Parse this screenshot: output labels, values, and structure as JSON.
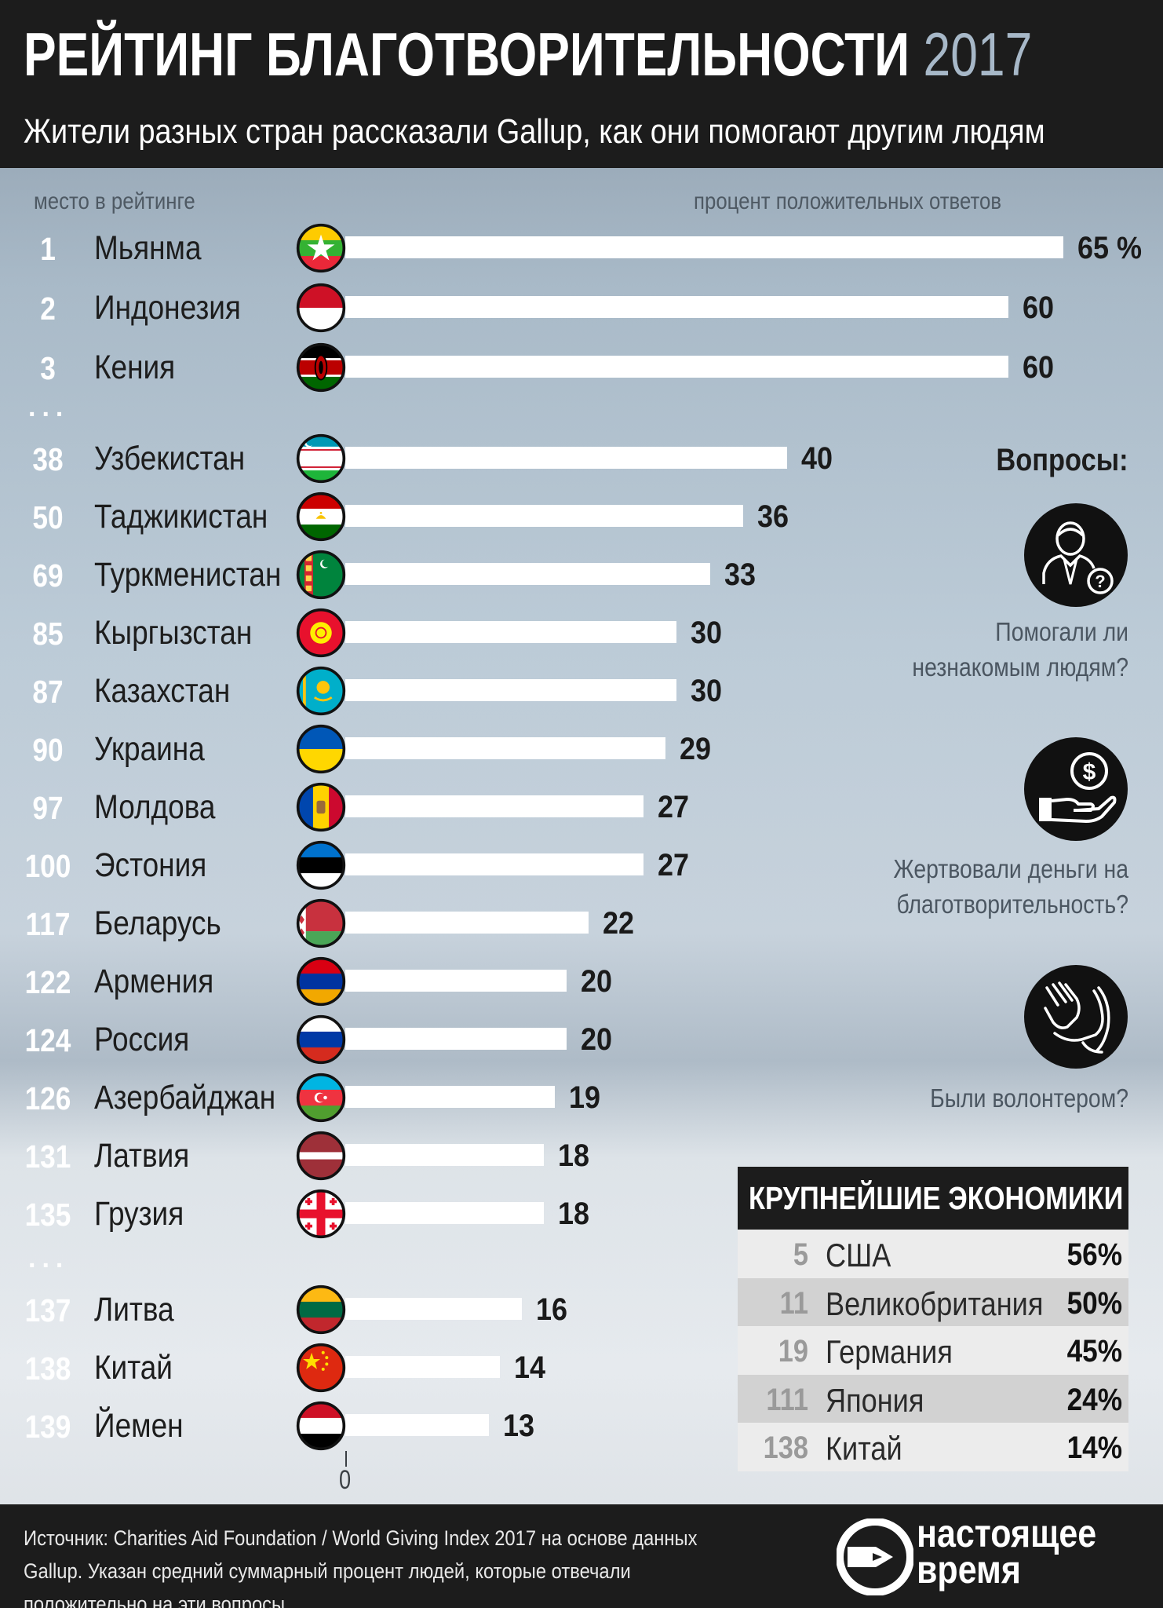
{
  "header": {
    "title": "РЕЙТИНГ БЛАГОТВОРИТЕЛЬНОСТИ",
    "title_year": "2017",
    "subtitle": "Жители разных стран рассказали Gallup, как они помогают другим людям"
  },
  "column_headers": {
    "rank": "место в рейтинге",
    "percent": "процент положительных ответов"
  },
  "ellipsis": "...",
  "chart_data": {
    "type": "bar",
    "orientation": "horizontal",
    "value_max": 65,
    "axis_zero_label": "0",
    "rows": [
      {
        "rank": "1",
        "country": "Мьянма",
        "value": 65,
        "label": "65 %",
        "flag": "myanmar"
      },
      {
        "rank": "2",
        "country": "Индонезия",
        "value": 60,
        "label": "60",
        "flag": "indonesia"
      },
      {
        "rank": "3",
        "country": "Кения",
        "value": 60,
        "label": "60",
        "flag": "kenya"
      },
      {
        "rank": "38",
        "country": "Узбекистан",
        "value": 40,
        "label": "40",
        "flag": "uzbekistan"
      },
      {
        "rank": "50",
        "country": "Таджикистан",
        "value": 36,
        "label": "36",
        "flag": "tajikistan"
      },
      {
        "rank": "69",
        "country": "Туркменистан",
        "value": 33,
        "label": "33",
        "flag": "turkmenistan"
      },
      {
        "rank": "85",
        "country": "Кыргызстан",
        "value": 30,
        "label": "30",
        "flag": "kyrgyzstan"
      },
      {
        "rank": "87",
        "country": "Казахстан",
        "value": 30,
        "label": "30",
        "flag": "kazakhstan"
      },
      {
        "rank": "90",
        "country": "Украина",
        "value": 29,
        "label": "29",
        "flag": "ukraine"
      },
      {
        "rank": "97",
        "country": "Молдова",
        "value": 27,
        "label": "27",
        "flag": "moldova"
      },
      {
        "rank": "100",
        "country": "Эстония",
        "value": 27,
        "label": "27",
        "flag": "estonia"
      },
      {
        "rank": "117",
        "country": "Беларусь",
        "value": 22,
        "label": "22",
        "flag": "belarus"
      },
      {
        "rank": "122",
        "country": "Армения",
        "value": 20,
        "label": "20",
        "flag": "armenia"
      },
      {
        "rank": "124",
        "country": "Россия",
        "value": 20,
        "label": "20",
        "flag": "russia"
      },
      {
        "rank": "126",
        "country": "Азербайджан",
        "value": 19,
        "label": "19",
        "flag": "azerbaijan"
      },
      {
        "rank": "131",
        "country": "Латвия",
        "value": 18,
        "label": "18",
        "flag": "latvia"
      },
      {
        "rank": "135",
        "country": "Грузия",
        "value": 18,
        "label": "18",
        "flag": "georgia"
      },
      {
        "rank": "137",
        "country": "Литва",
        "value": 16,
        "label": "16",
        "flag": "lithuania"
      },
      {
        "rank": "138",
        "country": "Китай",
        "value": 14,
        "label": "14",
        "flag": "china"
      },
      {
        "rank": "139",
        "country": "Йемен",
        "value": 13,
        "label": "13",
        "flag": "yemen"
      }
    ]
  },
  "questions": {
    "title": "Вопросы:",
    "items": [
      {
        "icon": "person-question-icon",
        "line1": "Помогали ли",
        "line2": "незнакомым людям?"
      },
      {
        "icon": "hand-coin-icon",
        "line1": "Жертвовали деньги на",
        "line2": "благотворительность?"
      },
      {
        "icon": "helping-hands-icon",
        "line1": "Были волонтером?",
        "line2": ""
      }
    ]
  },
  "economies": {
    "title": "КРУПНЕЙШИЕ ЭКОНОМИКИ",
    "rows": [
      {
        "rank": "5",
        "country": "США",
        "percent": "56%"
      },
      {
        "rank": "11",
        "country": "Великобритания",
        "percent": "50%"
      },
      {
        "rank": "19",
        "country": "Германия",
        "percent": "45%"
      },
      {
        "rank": "111",
        "country": "Япония",
        "percent": "24%"
      },
      {
        "rank": "138",
        "country": "Китай",
        "percent": "14%"
      }
    ]
  },
  "footer": {
    "source": "Источник: Charities Aid Foundation / World Giving Index 2017 на основе данных Gallup. Указан средний суммарный процент людей, которые отвечали положительно на эти вопросы.",
    "logo_line1": "настоящее",
    "logo_line2": "время"
  },
  "colors": {
    "header_bg": "#1c1c1c",
    "year_accent": "#a7b8c8",
    "bar": "#ffffff"
  }
}
